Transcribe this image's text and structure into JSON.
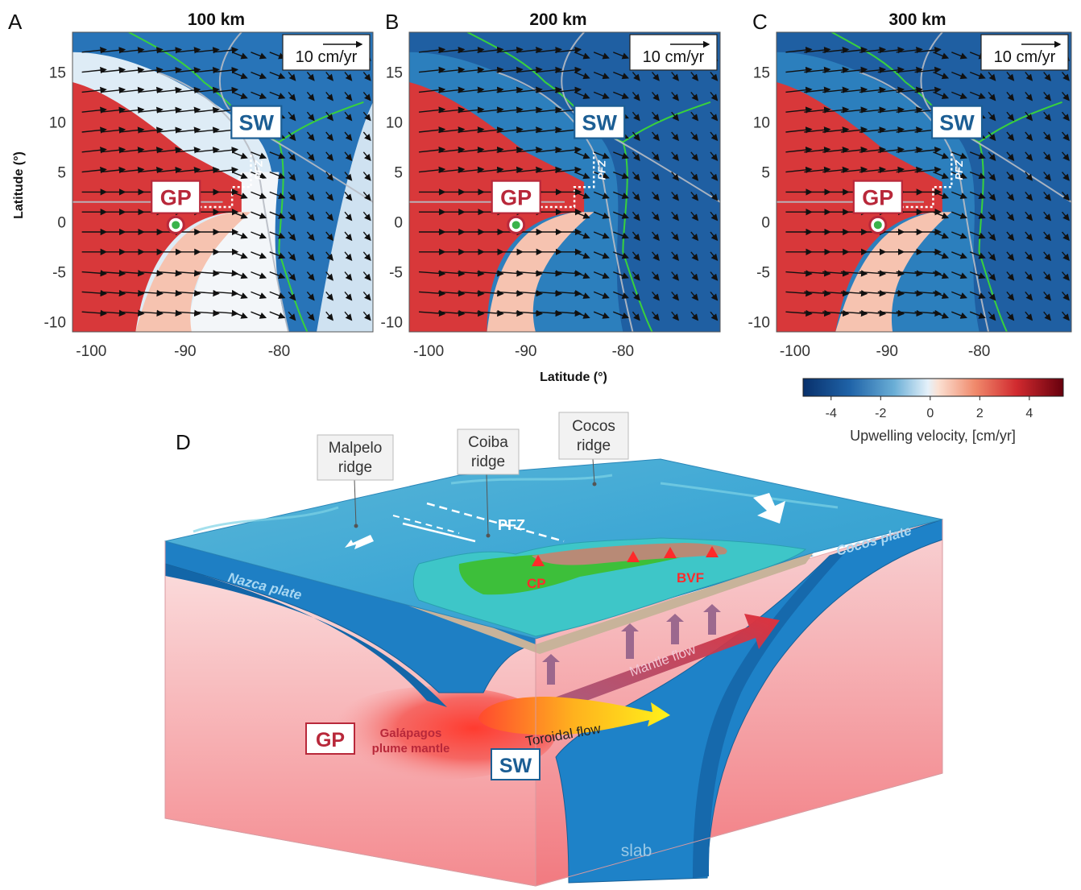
{
  "panels": [
    {
      "letter": "A",
      "depth": "100 km"
    },
    {
      "letter": "B",
      "depth": "200 km"
    },
    {
      "letter": "C",
      "depth": "300 km"
    }
  ],
  "scale_label": "10 cm/yr",
  "y_ticks": [
    "15",
    "10",
    "5",
    "0",
    "-5",
    "-10"
  ],
  "x_ticks": [
    "-100",
    "-90",
    "-80"
  ],
  "y_axis_title": "Latitude (°)",
  "x_axis_title": "Latitude (°)",
  "map_labels": {
    "sw": "SW",
    "gp": "GP",
    "pfz": "PFZ"
  },
  "colorbar": {
    "ticks": [
      "-4",
      "-2",
      "0",
      "2",
      "4"
    ],
    "label": "Upwelling velocity, [cm/yr]"
  },
  "block": {
    "letter": "D",
    "malpelo": [
      "Malpelo",
      "ridge"
    ],
    "coiba": [
      "Coiba",
      "ridge"
    ],
    "cocos": [
      "Cocos",
      "ridge"
    ],
    "pfz": "PFZ",
    "nazca": "Nazca plate",
    "cocos_plate": "Cocos plate",
    "cp": "CP",
    "bvf": "BVF",
    "mantle_flow": "Mantle flow",
    "toroidal_flow": "Toroidal flow",
    "gp": "GP",
    "galapagos": [
      "Galápagos",
      "plume mantle"
    ],
    "sw": "SW",
    "slab": "slab"
  },
  "colors": {
    "red_strong": "#d8383a",
    "red_light": "#f6c3b0",
    "blue_strong": "#1f6fb0",
    "blue_light": "#c6def0",
    "coast": "#39d13c",
    "gp_box": "#b8283a",
    "sw_box": "#1c5e94"
  }
}
